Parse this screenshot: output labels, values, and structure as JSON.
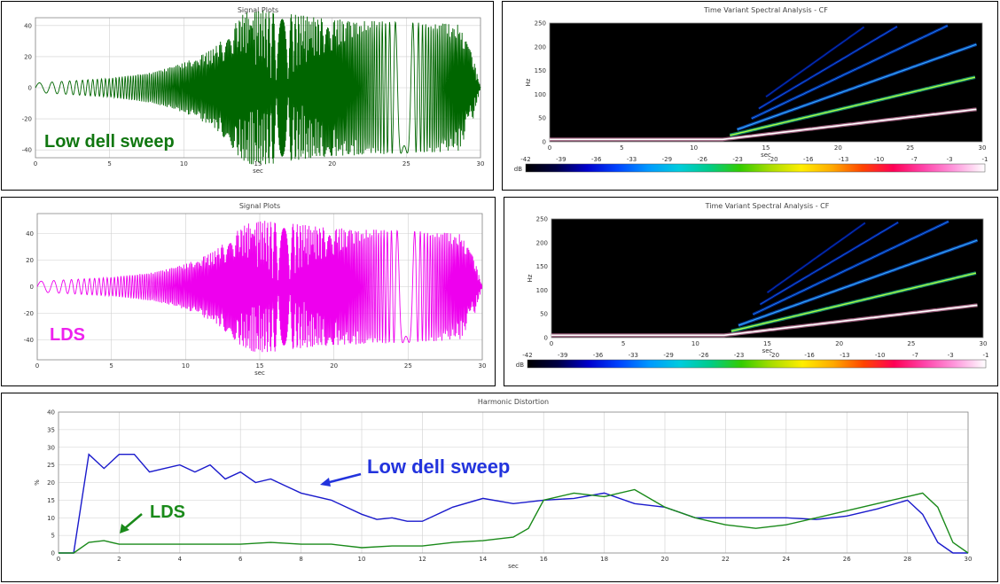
{
  "chart_data": [
    {
      "type": "line",
      "id": "signal_top",
      "title": "Signal Plots",
      "xlabel": "sec",
      "ylabel": "",
      "xlim": [
        0,
        30
      ],
      "ylim": [
        -45,
        45
      ],
      "xticks": [
        0,
        5,
        10,
        15,
        20,
        25,
        30
      ],
      "yticks": [
        40,
        20,
        0,
        -20,
        -40
      ],
      "series": [
        {
          "color": "#006600",
          "x": [
            0,
            5,
            8,
            10,
            12,
            13,
            14,
            15,
            20,
            25,
            28.5,
            29.5,
            30
          ],
          "envelope": [
            3,
            6,
            10,
            16,
            25,
            35,
            48,
            50,
            44,
            42,
            41,
            20,
            0
          ]
        }
      ],
      "annotations": [
        {
          "text": "Low dell sweep",
          "color": "#117711"
        }
      ]
    },
    {
      "type": "line",
      "id": "signal_middle",
      "title": "Signal Plots",
      "xlabel": "sec",
      "ylabel": "",
      "xlim": [
        0,
        30
      ],
      "ylim": [
        -55,
        55
      ],
      "xticks": [
        0,
        5,
        10,
        15,
        20,
        25,
        30
      ],
      "yticks": [
        40,
        20,
        0,
        -20,
        -40
      ],
      "series": [
        {
          "color": "#ee00ee",
          "x": [
            0,
            5,
            8,
            10,
            12,
            13,
            14,
            15,
            20,
            25,
            28.5,
            29.5,
            30
          ],
          "envelope": [
            4,
            7,
            11,
            17,
            27,
            37,
            47,
            50,
            44,
            42,
            40,
            20,
            0
          ]
        }
      ],
      "annotations": [
        {
          "text": "LDS",
          "color": "#ee22ee"
        }
      ]
    },
    {
      "type": "heatmap",
      "id": "spectral_top",
      "title": "Time Variant Spectral Analysis - CF",
      "xlabel": "sec",
      "ylabel": "Hz",
      "xlim": [
        0,
        30
      ],
      "ylim": [
        0,
        250
      ],
      "xticks": [
        0,
        5,
        10,
        15,
        20,
        25,
        30
      ],
      "yticks": [
        0,
        50,
        100,
        150,
        200,
        250
      ],
      "colorbar": {
        "label": "dB",
        "ticks": [
          "-42",
          "-39",
          "-36",
          "-33",
          "-29",
          "-26",
          "-23",
          "-20",
          "-16",
          "-13",
          "-10",
          "-7",
          "-3",
          "-1"
        ]
      }
    },
    {
      "type": "heatmap",
      "id": "spectral_middle",
      "title": "Time Variant Spectral Analysis - CF",
      "xlabel": "sec",
      "ylabel": "Hz",
      "xlim": [
        0,
        30
      ],
      "ylim": [
        0,
        250
      ],
      "xticks": [
        0,
        5,
        10,
        15,
        20,
        25,
        30
      ],
      "yticks": [
        0,
        50,
        100,
        150,
        200,
        250
      ],
      "colorbar": {
        "label": "dB",
        "ticks": [
          "-42",
          "-39",
          "-36",
          "-33",
          "-29",
          "-26",
          "-23",
          "-20",
          "-16",
          "-13",
          "-10",
          "-7",
          "-3",
          "-1"
        ]
      }
    },
    {
      "type": "line",
      "id": "harmonic_distortion",
      "title": "Harmonic Distortion",
      "xlabel": "sec",
      "ylabel": "%",
      "xlim": [
        0,
        30
      ],
      "ylim": [
        0,
        40
      ],
      "xticks": [
        0,
        2,
        4,
        6,
        8,
        10,
        12,
        14,
        16,
        18,
        20,
        22,
        24,
        26,
        28,
        30
      ],
      "yticks": [
        0,
        5,
        10,
        15,
        20,
        25,
        30,
        35,
        40
      ],
      "series": [
        {
          "name": "Low dell sweep",
          "color": "#1a1acc",
          "x": [
            0,
            0.5,
            1,
            1.5,
            2,
            2.5,
            3,
            3.5,
            4,
            4.5,
            5,
            5.5,
            6,
            6.5,
            7,
            7.5,
            8,
            9,
            10,
            10.5,
            11,
            11.5,
            12,
            13,
            14,
            15,
            16,
            17,
            18,
            19,
            20,
            21,
            22,
            23,
            24,
            25,
            26,
            27,
            28,
            28.5,
            29,
            29.5,
            30
          ],
          "y": [
            0,
            0,
            28,
            24,
            28,
            28,
            23,
            24,
            25,
            23,
            25,
            21,
            23,
            20,
            21,
            19,
            17,
            15,
            11,
            9.5,
            10,
            9,
            9,
            13,
            15.5,
            14,
            15,
            15.5,
            17,
            14,
            13,
            10,
            10,
            10,
            10,
            9.5,
            10.5,
            12.5,
            15,
            11,
            3,
            0,
            0
          ]
        },
        {
          "name": "LDS",
          "color": "#1a8a1a",
          "x": [
            0,
            0.5,
            1,
            1.5,
            2,
            3,
            4,
            5,
            6,
            7,
            8,
            9,
            10,
            11,
            12,
            13,
            14,
            15,
            15.5,
            16,
            17,
            18,
            19,
            20,
            21,
            22,
            23,
            24,
            25,
            26,
            27,
            28,
            28.5,
            29,
            29.5,
            30
          ],
          "y": [
            0,
            0,
            3,
            3.5,
            2.5,
            2.5,
            2.5,
            2.5,
            2.5,
            3,
            2.5,
            2.5,
            1.5,
            2,
            2,
            3,
            3.5,
            4.5,
            7,
            15,
            17,
            16,
            18,
            13,
            10,
            8,
            7,
            8,
            10,
            12,
            14,
            16,
            17,
            13,
            3,
            0
          ]
        }
      ],
      "annotations": [
        {
          "text": "Low dell sweep",
          "color": "#2233dd"
        },
        {
          "text": "LDS",
          "color": "#1a8a1a"
        }
      ]
    }
  ]
}
